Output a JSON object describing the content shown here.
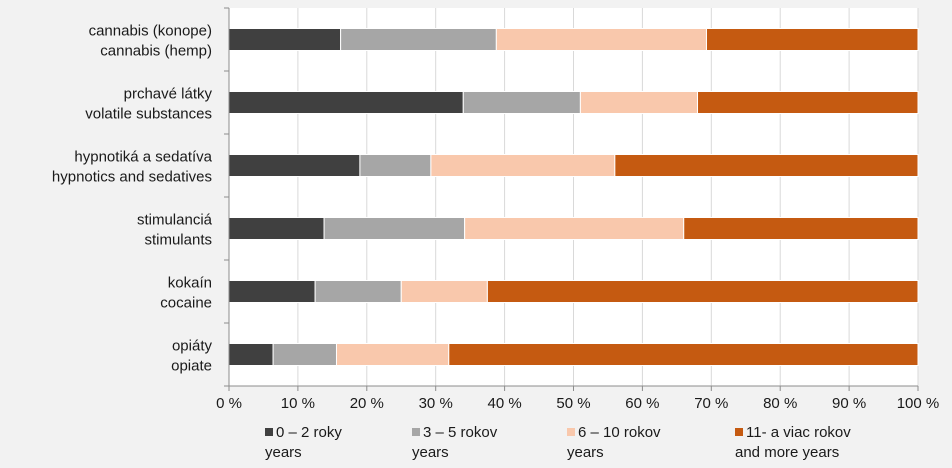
{
  "chart_data": {
    "type": "bar",
    "orientation": "horizontal",
    "stacked": true,
    "categories": [
      [
        "cannabis (konope)",
        "cannabis (hemp)"
      ],
      [
        "prchavé látky",
        "volatile substances"
      ],
      [
        "hypnotiká a sedatíva",
        "hypnotics and sedatives"
      ],
      [
        "stimulanciá",
        "stimulants"
      ],
      [
        "kokaín",
        "cocaine"
      ],
      [
        "opiáty",
        "opiate"
      ]
    ],
    "series": [
      {
        "name": [
          "0 – 2 roky",
          "years"
        ],
        "color": "#404040",
        "values": [
          16.2,
          34.0,
          19.0,
          13.8,
          12.5,
          6.4
        ]
      },
      {
        "name": [
          "3 – 5 rokov",
          "years"
        ],
        "color": "#a6a6a6",
        "values": [
          22.6,
          17.0,
          10.3,
          20.4,
          12.5,
          9.2
        ]
      },
      {
        "name": [
          "6 – 10 rokov",
          "years"
        ],
        "color": "#f9c8ac",
        "values": [
          30.5,
          17.0,
          26.7,
          31.8,
          12.5,
          16.3
        ]
      },
      {
        "name": [
          "11- a viac rokov",
          "and more years"
        ],
        "color": "#c55a11",
        "values": [
          30.7,
          32.0,
          44.0,
          34.0,
          62.5,
          68.1
        ]
      }
    ],
    "xlim": [
      0,
      100
    ],
    "xticks": [
      "0 %",
      "10 %",
      "20 %",
      "30 %",
      "40 %",
      "50 %",
      "60 %",
      "70 %",
      "80 %",
      "90 %",
      "100 %"
    ],
    "grid": true,
    "legend": "bottom"
  }
}
